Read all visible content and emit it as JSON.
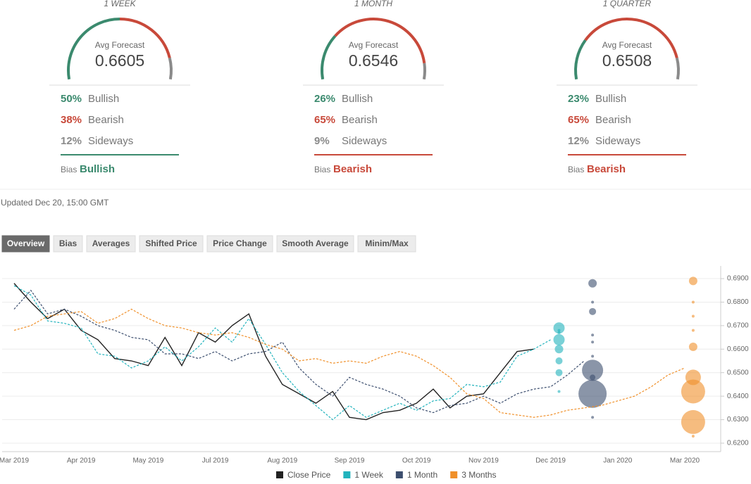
{
  "gauges": [
    {
      "period": "1 WEEK",
      "avg_label": "Avg Forecast",
      "avg": "0.6605",
      "bullish": {
        "value": 50,
        "label": "50%"
      },
      "bullish_label": "Bullish",
      "bearish": {
        "value": 38,
        "label": "38%"
      },
      "bearish_label": "Bearish",
      "sideways": {
        "value": 12,
        "label": "12%"
      },
      "sideways_label": "Sideways",
      "bias_label": "Bias",
      "bias": "Bullish",
      "bias_color": "#3b8a6e"
    },
    {
      "period": "1 MONTH",
      "avg_label": "Avg Forecast",
      "avg": "0.6546",
      "bullish": {
        "value": 26,
        "label": "26%"
      },
      "bullish_label": "Bullish",
      "bearish": {
        "value": 65,
        "label": "65%"
      },
      "bearish_label": "Bearish",
      "sideways": {
        "value": 9,
        "label": "9%"
      },
      "sideways_label": "Sideways",
      "bias_label": "Bias",
      "bias": "Bearish",
      "bias_color": "#c8493a"
    },
    {
      "period": "1 QUARTER",
      "avg_label": "Avg Forecast",
      "avg": "0.6508",
      "bullish": {
        "value": 23,
        "label": "23%"
      },
      "bullish_label": "Bullish",
      "bearish": {
        "value": 65,
        "label": "65%"
      },
      "bearish_label": "Bearish",
      "sideways": {
        "value": 12,
        "label": "12%"
      },
      "sideways_label": "Sideways",
      "bias_label": "Bias",
      "bias": "Bearish",
      "bias_color": "#c8493a"
    }
  ],
  "gauge_colors": {
    "bullish": "#3b8a6e",
    "bearish": "#c8493a",
    "sideways": "#8a8a8a"
  },
  "updated": "Updated Dec 20, 15:00 GMT",
  "tabs": [
    "Overview",
    "Bias",
    "Averages",
    "Shifted Price",
    "Price Change",
    "Smooth Average",
    "Minim/Max"
  ],
  "chart_data": {
    "type": "line",
    "categories": [
      "Mar 2019",
      null,
      null,
      null,
      "Apr 2019",
      null,
      null,
      null,
      "May 2019",
      null,
      null,
      null,
      "Jul 2019",
      null,
      null,
      null,
      "Aug 2019",
      null,
      null,
      null,
      "Sep 2019",
      null,
      null,
      null,
      "Oct 2019",
      null,
      null,
      null,
      "Nov 2019",
      null,
      null,
      null,
      "Dec 2019",
      null,
      null,
      null,
      "Jan 2020",
      null,
      null,
      null,
      "Mar 2020"
    ],
    "series": [
      {
        "name": "Close Price",
        "color": "#222222",
        "dashed": false,
        "values": [
          0.688,
          0.68,
          0.673,
          0.677,
          0.668,
          0.664,
          0.656,
          0.655,
          0.653,
          0.665,
          0.653,
          0.667,
          0.663,
          0.67,
          0.675,
          0.657,
          0.645,
          0.641,
          0.637,
          0.642,
          0.631,
          0.63,
          0.633,
          0.634,
          0.637,
          0.643,
          0.635,
          0.64,
          0.641,
          0.65,
          0.659,
          0.66,
          null,
          null,
          null,
          null,
          null,
          null,
          null,
          null,
          null
        ]
      },
      {
        "name": "1 Week",
        "color": "#22b3bd",
        "dashed": true,
        "values": [
          0.687,
          0.683,
          0.672,
          0.671,
          0.669,
          0.658,
          0.657,
          0.652,
          0.655,
          0.661,
          0.655,
          0.661,
          0.669,
          0.663,
          0.673,
          0.662,
          0.65,
          0.642,
          0.636,
          0.63,
          0.636,
          0.631,
          0.634,
          0.637,
          0.634,
          0.638,
          0.639,
          0.645,
          0.644,
          0.646,
          0.657,
          0.66,
          0.664,
          null,
          null,
          null,
          null,
          null,
          null,
          null,
          null
        ],
        "forecast_values": [
          0.669,
          0.664,
          0.66,
          0.655,
          0.65,
          0.642,
          0.668,
          0.667
        ],
        "forecast_sizes": [
          8,
          8,
          6,
          5,
          5,
          2,
          2,
          2
        ]
      },
      {
        "name": "1 Month",
        "color": "#3c4e6e",
        "dashed": true,
        "values": [
          0.677,
          0.685,
          0.675,
          0.677,
          0.674,
          0.67,
          0.668,
          0.665,
          0.664,
          0.658,
          0.658,
          0.656,
          0.659,
          0.655,
          0.658,
          0.659,
          0.663,
          0.652,
          0.645,
          0.64,
          0.648,
          0.645,
          0.643,
          0.64,
          0.635,
          0.633,
          0.636,
          0.637,
          0.64,
          0.637,
          0.641,
          0.643,
          0.644,
          0.649,
          0.655,
          null,
          null,
          null,
          null,
          null,
          null
        ],
        "forecast_values": [
          0.688,
          0.68,
          0.676,
          0.666,
          0.663,
          0.657,
          0.651,
          0.648,
          0.641,
          0.631
        ],
        "forecast_sizes": [
          6,
          2,
          5,
          2,
          2,
          2,
          15,
          4,
          20,
          2
        ]
      },
      {
        "name": "3 Months",
        "color": "#f0902a",
        "dashed": true,
        "values": [
          0.668,
          0.67,
          0.674,
          0.675,
          0.676,
          0.671,
          0.673,
          0.677,
          0.673,
          0.67,
          0.669,
          0.667,
          0.666,
          0.667,
          0.665,
          0.662,
          0.66,
          0.655,
          0.656,
          0.654,
          0.655,
          0.654,
          0.657,
          0.659,
          0.657,
          0.653,
          0.648,
          0.641,
          0.639,
          0.633,
          0.632,
          0.631,
          0.632,
          0.634,
          0.635,
          0.636,
          0.638,
          0.64,
          0.644,
          0.649,
          0.652
        ],
        "forecast_values": [
          0.689,
          0.68,
          0.674,
          0.668,
          0.661,
          0.648,
          0.642,
          0.629,
          0.623
        ],
        "forecast_sizes": [
          6,
          2,
          2,
          2,
          6,
          11,
          17,
          17,
          2
        ]
      }
    ],
    "ylim": [
      0.6164,
      0.6954
    ],
    "yticks": [
      {
        "value": 0.62,
        "label": "0.6200"
      },
      {
        "value": 0.63,
        "label": "0.6300"
      },
      {
        "value": 0.64,
        "label": "0.6400"
      },
      {
        "value": 0.65,
        "label": "0.6500"
      },
      {
        "value": 0.66,
        "label": "0.6600"
      },
      {
        "value": 0.67,
        "label": "0.6700"
      },
      {
        "value": 0.68,
        "label": "0.6800"
      },
      {
        "value": 0.69,
        "label": "0.6900"
      }
    ],
    "grid": true
  }
}
